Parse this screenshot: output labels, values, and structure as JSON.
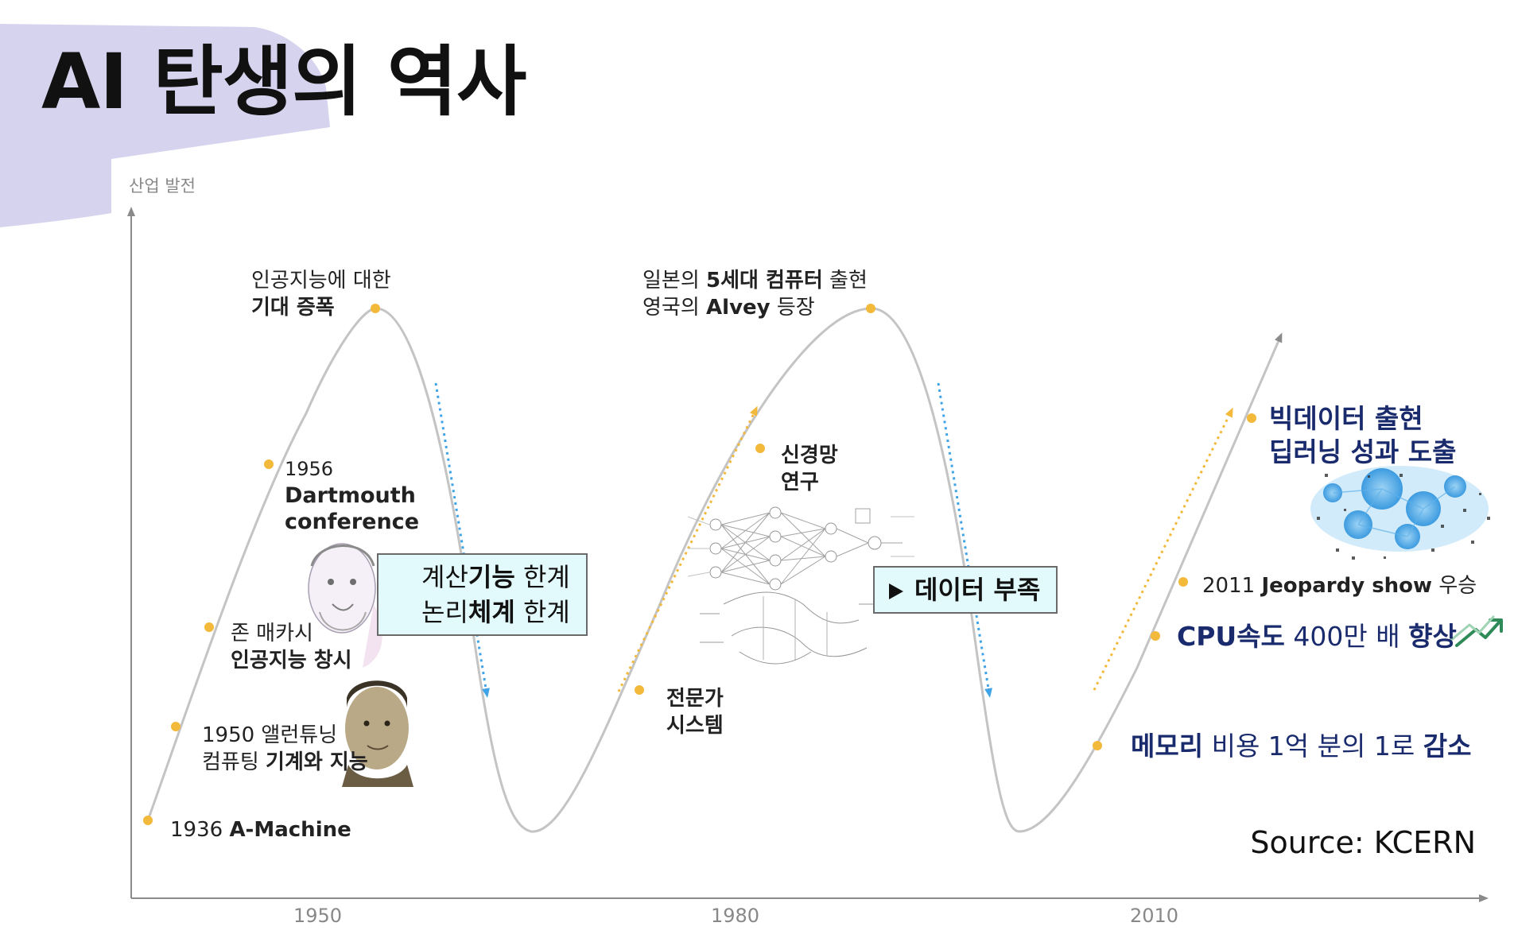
{
  "title": "AI 탄생의 역사",
  "axis": {
    "y_label": "산업 발전",
    "x_ticks": [
      "1950",
      "1980",
      "2010"
    ]
  },
  "events": {
    "a_machine": {
      "year": "1936",
      "text": "A-Machine"
    },
    "turing": {
      "line1_pre": "1950 앨런튜닝",
      "line2_pre": "컴퓨팅 ",
      "line2_bold": "기계와 지능"
    },
    "mccarthy": {
      "line1": "존 매카시",
      "line2": "인공지능 창시"
    },
    "dartmouth": {
      "year": "1956",
      "line1": "Dartmouth",
      "line2": "conference"
    },
    "expectation": {
      "line1": "인공지능에 대한",
      "line2": "기대 증폭"
    },
    "fifth_gen": {
      "l1_pre": "일본의 ",
      "l1_bold": "5세대 컴퓨터",
      "l1_post": " 출현",
      "l2_pre": "영국의 ",
      "l2_bold": "Alvey",
      "l2_post": " 등장"
    },
    "neural": {
      "line1": "신경망",
      "line2": "연구"
    },
    "expert": {
      "line1": "전문가",
      "line2": "시스템"
    },
    "bigdata": {
      "line1": "빅데이터 출현",
      "line2": "딥러닝 성과 도출"
    },
    "jeopardy": {
      "pre": "2011 ",
      "bold": "Jeopardy show",
      "post": " 우승"
    },
    "cpu": {
      "bold1": "CPU속도",
      "mid": " 400만 배 ",
      "bold2": "향상"
    },
    "memory": {
      "bold1": "메모리",
      "mid": " 비용 1억 분의 1로 ",
      "bold2": "감소"
    }
  },
  "limit_box_1": {
    "row1_pre": "계산",
    "row1_bold": "기능",
    "row1_post": " 한계",
    "row2_pre": "논리",
    "row2_bold": "체계",
    "row2_post": " 한계"
  },
  "limit_box_2": {
    "text": "데이터 부족"
  },
  "source": "Source: KCERN",
  "colors": {
    "curve": "#c4c4c4",
    "point": "#f2b93b",
    "rise_arrow": "#f2b93b",
    "fall_arrow": "#3fa3e8",
    "box_fill": "#e2fafb",
    "title_brush": "#d6d3ee",
    "navy_text": "#1a2b6d"
  }
}
